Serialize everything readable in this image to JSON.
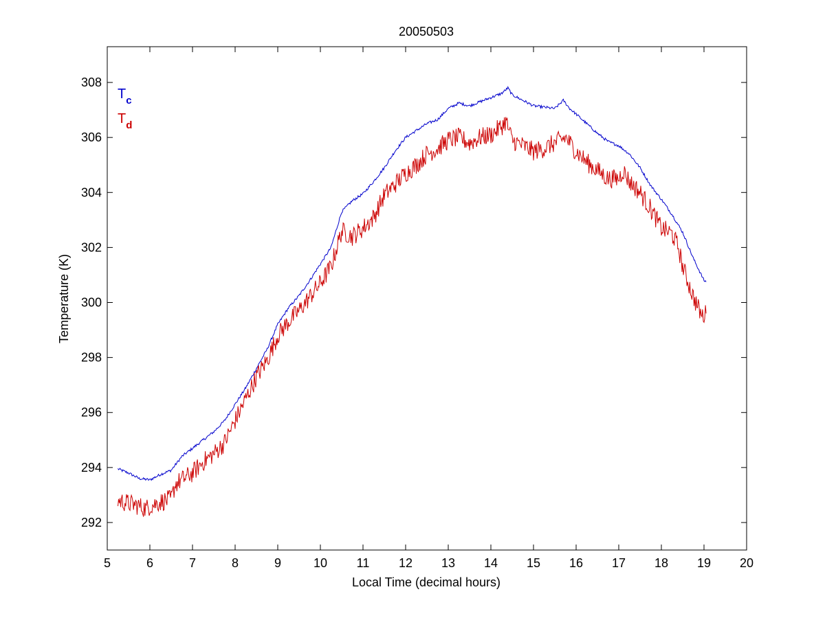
{
  "chart_data": {
    "type": "line",
    "title": "20050503",
    "xlabel": "Local Time (decimal hours)",
    "ylabel": "Temperature (K)",
    "xlim": [
      5,
      20
    ],
    "ylim": [
      291,
      309.3
    ],
    "xticks": [
      5,
      6,
      7,
      8,
      9,
      10,
      11,
      12,
      13,
      14,
      15,
      16,
      17,
      18,
      19,
      20
    ],
    "yticks": [
      292,
      294,
      296,
      298,
      300,
      302,
      304,
      306,
      308
    ],
    "grid": false,
    "legend_position": "top-left",
    "series": [
      {
        "name": "T",
        "subscript": "c",
        "color": "#0000cc",
        "noise": 0.05,
        "x": [
          5.25,
          5.5,
          5.75,
          6.0,
          6.25,
          6.5,
          6.75,
          7.0,
          7.25,
          7.5,
          7.75,
          8.0,
          8.25,
          8.5,
          8.75,
          9.0,
          9.25,
          9.5,
          9.75,
          10.0,
          10.25,
          10.5,
          10.75,
          11.0,
          11.25,
          11.5,
          11.75,
          12.0,
          12.25,
          12.5,
          12.75,
          13.0,
          13.25,
          13.5,
          13.75,
          14.0,
          14.25,
          14.4,
          14.5,
          14.75,
          15.0,
          15.25,
          15.5,
          15.7,
          15.85,
          16.0,
          16.25,
          16.5,
          16.75,
          17.0,
          17.25,
          17.5,
          17.75,
          18.0,
          18.25,
          18.5,
          18.75,
          19.0,
          19.05
        ],
        "y": [
          293.95,
          293.8,
          293.6,
          293.55,
          293.75,
          293.9,
          294.4,
          294.7,
          295.0,
          295.3,
          295.7,
          296.3,
          296.9,
          297.6,
          298.3,
          299.2,
          299.8,
          300.25,
          300.8,
          301.4,
          302.0,
          303.3,
          303.7,
          303.95,
          304.4,
          304.9,
          305.5,
          306.0,
          306.25,
          306.5,
          306.65,
          307.05,
          307.25,
          307.15,
          307.3,
          307.45,
          307.6,
          307.8,
          307.55,
          307.35,
          307.15,
          307.1,
          307.05,
          307.35,
          307.05,
          306.85,
          306.5,
          306.15,
          305.85,
          305.7,
          305.4,
          304.9,
          304.25,
          303.75,
          303.2,
          302.55,
          301.6,
          300.8,
          300.75
        ]
      },
      {
        "name": "T",
        "subscript": "d",
        "color": "#cc0000",
        "noise": 0.35,
        "x": [
          5.25,
          5.5,
          5.75,
          5.9,
          6.0,
          6.25,
          6.5,
          6.6,
          6.75,
          7.0,
          7.25,
          7.5,
          7.75,
          8.0,
          8.25,
          8.5,
          8.75,
          9.0,
          9.25,
          9.5,
          9.75,
          10.0,
          10.25,
          10.5,
          10.75,
          11.0,
          11.25,
          11.5,
          11.75,
          12.0,
          12.25,
          12.5,
          12.75,
          13.0,
          13.25,
          13.5,
          13.75,
          14.0,
          14.25,
          14.35,
          14.5,
          14.75,
          15.0,
          15.25,
          15.5,
          15.75,
          16.0,
          16.25,
          16.5,
          16.75,
          17.0,
          17.1,
          17.25,
          17.5,
          17.75,
          18.0,
          18.25,
          18.4,
          18.5,
          18.75,
          18.95,
          19.05
        ],
        "y": [
          292.8,
          292.7,
          292.6,
          292.5,
          292.6,
          292.75,
          292.85,
          293.4,
          293.55,
          293.8,
          294.2,
          294.5,
          294.9,
          295.7,
          296.5,
          297.3,
          297.9,
          298.8,
          299.3,
          299.7,
          300.2,
          300.7,
          301.3,
          302.6,
          302.4,
          302.7,
          303.1,
          303.9,
          304.3,
          304.7,
          305.0,
          305.4,
          305.6,
          305.9,
          306.0,
          305.8,
          306.0,
          306.1,
          306.4,
          306.6,
          305.9,
          305.7,
          305.5,
          305.6,
          305.8,
          306.0,
          305.5,
          305.1,
          304.8,
          304.5,
          304.5,
          304.8,
          304.4,
          304.0,
          303.4,
          302.7,
          302.5,
          302.0,
          301.3,
          300.2,
          299.5,
          299.6
        ]
      }
    ]
  }
}
